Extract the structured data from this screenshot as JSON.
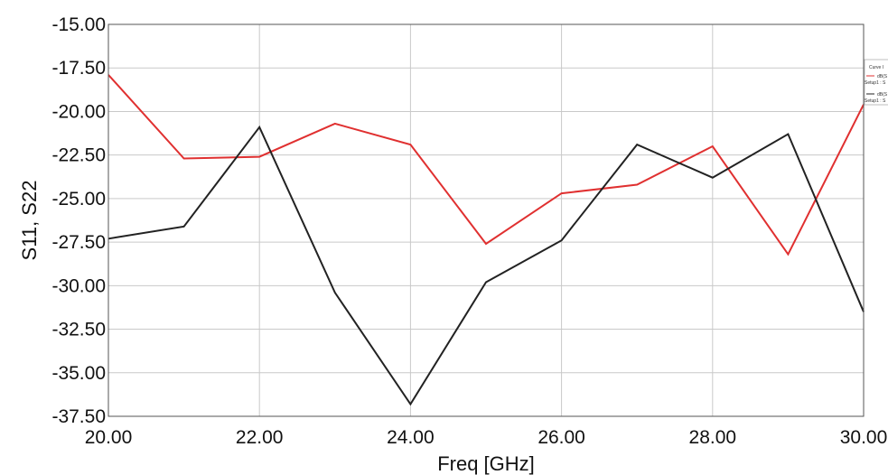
{
  "chart_data": {
    "type": "line",
    "xlabel": "Freq [GHz]",
    "ylabel": "S11, S22",
    "xlim": [
      20,
      30
    ],
    "ylim": [
      -37.5,
      -15
    ],
    "x_ticks": [
      20,
      22,
      24,
      26,
      28,
      30
    ],
    "y_ticks": [
      -15,
      -17.5,
      -20,
      -22.5,
      -25,
      -27.5,
      -30,
      -32.5,
      -35,
      -37.5
    ],
    "x_tick_labels": [
      "20.00",
      "22.00",
      "24.00",
      "26.00",
      "28.00",
      "30.00"
    ],
    "y_tick_labels": [
      "-15.00",
      "-17.50",
      "-20.00",
      "-22.50",
      "-25.00",
      "-27.50",
      "-30.00",
      "-32.50",
      "-35.00",
      "-37.50"
    ],
    "grid": true,
    "legend_position": "top-right",
    "legend": {
      "title": "Curve I",
      "entries": [
        {
          "label": "dB(S",
          "sublabel": "Setup1 : S"
        },
        {
          "label": "dB(S",
          "sublabel": "Setup1 : S"
        }
      ]
    },
    "x": [
      20,
      21,
      22,
      23,
      24,
      25,
      26,
      27,
      28,
      29,
      30
    ],
    "series": [
      {
        "color": "#e03030",
        "values": [
          -17.9,
          -22.7,
          -22.6,
          -20.7,
          -21.9,
          -27.6,
          -24.7,
          -24.2,
          -22.0,
          -28.2,
          -19.6
        ]
      },
      {
        "color": "#222222",
        "values": [
          -27.3,
          -26.6,
          -20.9,
          -30.4,
          -36.8,
          -29.8,
          -27.4,
          -21.9,
          -23.8,
          -21.3,
          -31.5
        ]
      }
    ]
  }
}
